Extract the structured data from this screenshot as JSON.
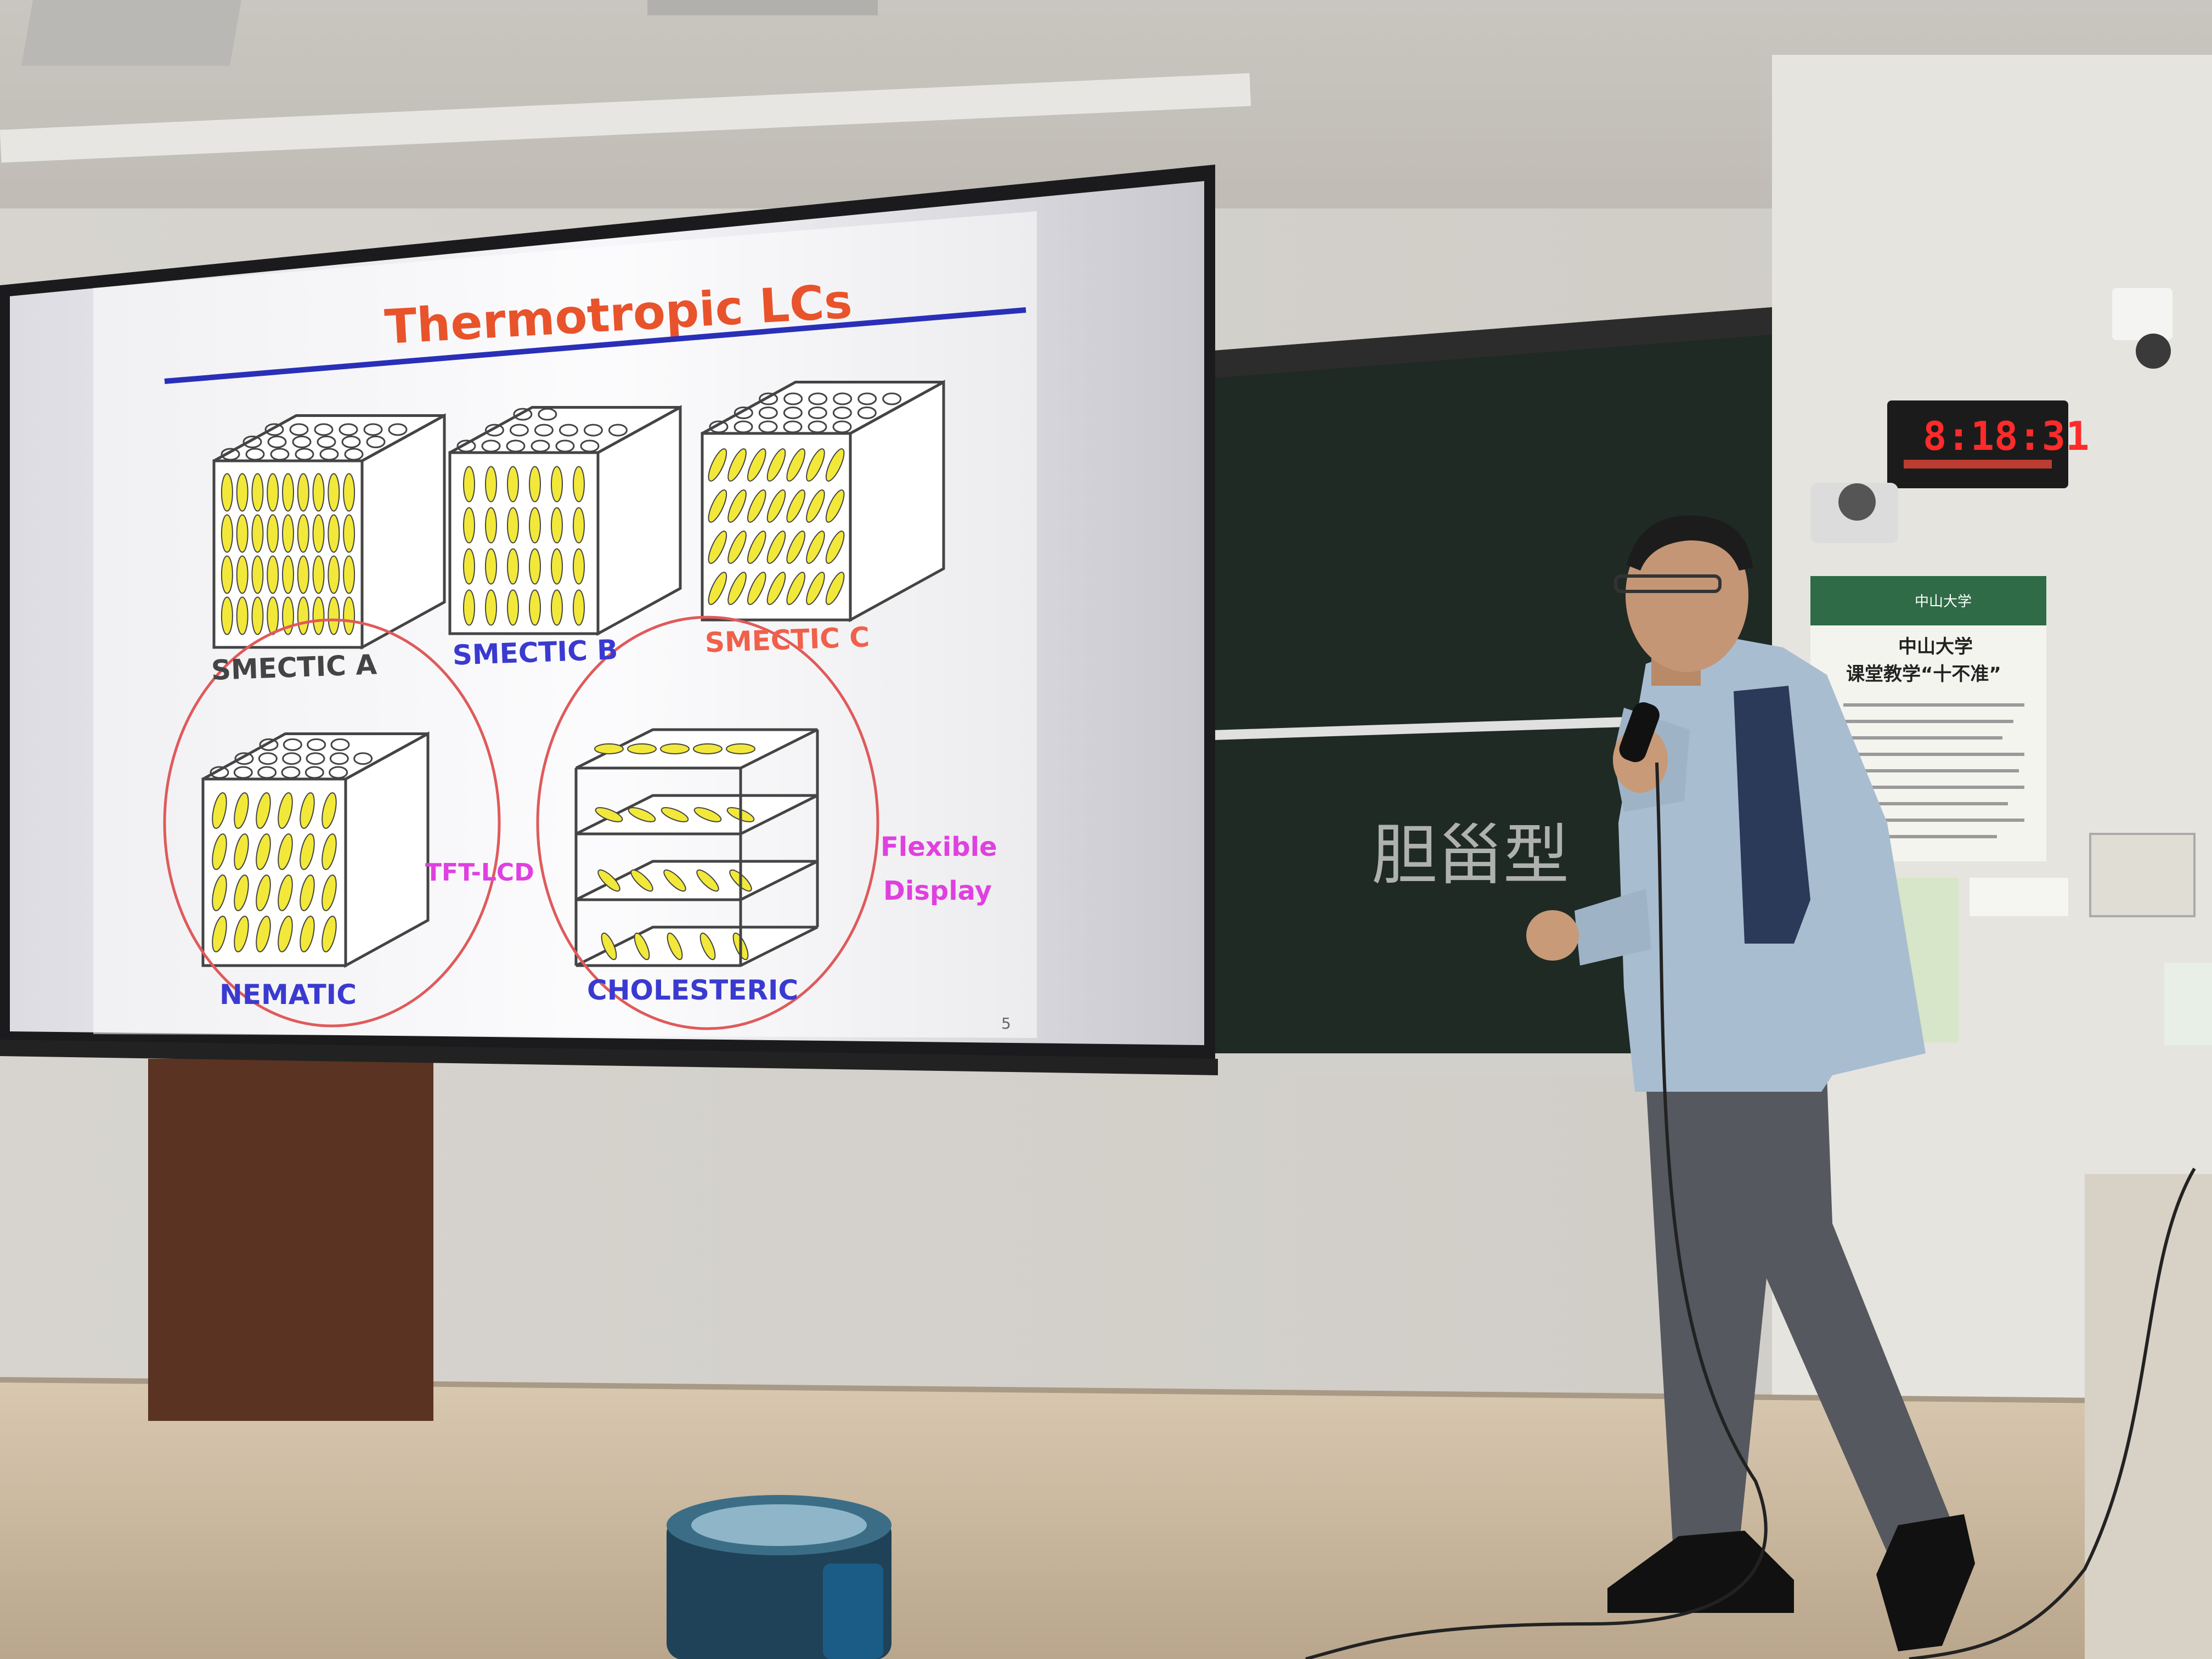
{
  "slide": {
    "title": "Thermotropic LCs",
    "page_number": "5",
    "labels": {
      "smectic_a": "SMECTIC A",
      "smectic_b": "SMECTIC B",
      "smectic_c": "SMECTIC C",
      "nematic": "NEMATIC",
      "cholesteric": "CHOLESTERIC",
      "tft_lcd": "TFT-LCD",
      "flexible": "Flexible",
      "display": "Display"
    }
  },
  "chalkboard": {
    "handwriting": "胆甾型"
  },
  "clock": {
    "time": "8:18:31"
  },
  "notice": {
    "header": "中山大学",
    "title_line1": "中山大学",
    "title_line2": "课堂教学“十不准”"
  },
  "colors": {
    "title_orange": "#e8532b",
    "rule_blue": "#2a2fb8",
    "label_gray": "#444444",
    "label_blue": "#3a3ad0",
    "label_orange": "#f0604a",
    "label_magenta": "#e040e0",
    "ellipse_yellow": "#f2e83a",
    "circle_red": "#e05a5a"
  }
}
